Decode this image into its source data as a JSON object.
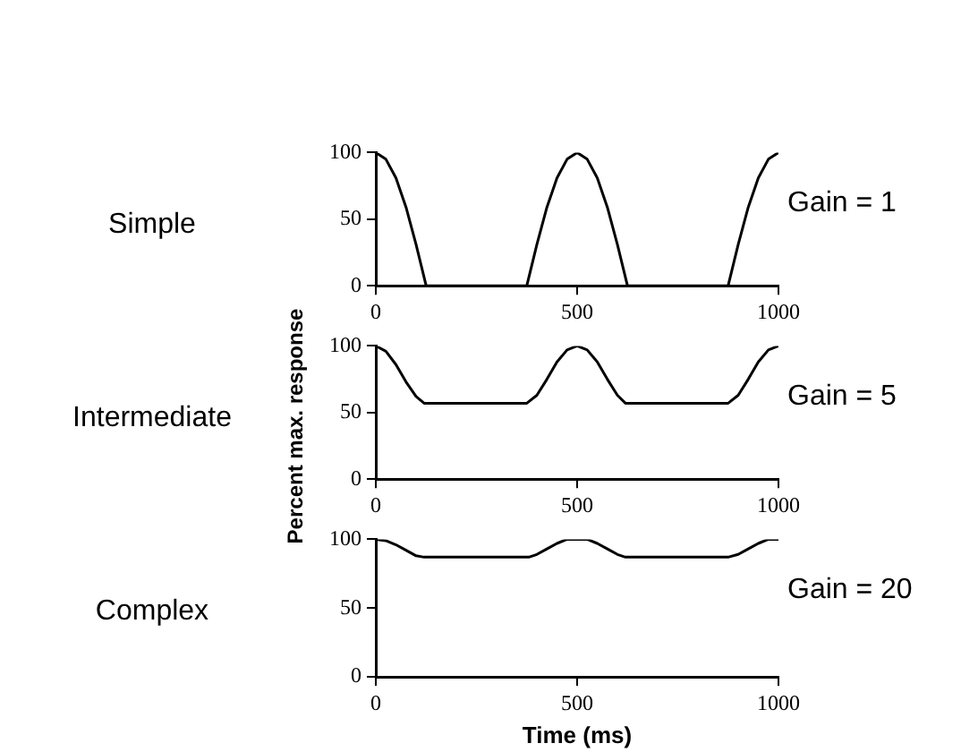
{
  "chart_data": [
    {
      "type": "line",
      "annotations": [
        "Simple",
        "Gain = 1"
      ],
      "x": [
        0,
        25,
        50,
        75,
        100,
        125,
        375,
        400,
        425,
        450,
        475,
        500,
        525,
        550,
        575,
        600,
        625,
        875,
        900,
        925,
        950,
        975,
        1000
      ],
      "series": [
        {
          "color": "#000000",
          "values": [
            100,
            95,
            81,
            59,
            31,
            0,
            0,
            31,
            59,
            81,
            95,
            100,
            95,
            81,
            59,
            31,
            0,
            0,
            31,
            59,
            81,
            95,
            100
          ]
        }
      ],
      "xlim": [
        0,
        1000
      ],
      "xticks": [
        0,
        500,
        1000
      ],
      "ylim": [
        0,
        100
      ],
      "yticks": [
        0,
        50,
        100
      ]
    },
    {
      "type": "line",
      "annotations": [
        "Intermediate",
        "Gain = 5"
      ],
      "ylabel": "Percent max. response",
      "x": [
        0,
        25,
        50,
        75,
        100,
        120,
        375,
        400,
        425,
        450,
        475,
        500,
        525,
        550,
        575,
        600,
        620,
        875,
        900,
        925,
        950,
        975,
        1000
      ],
      "series": [
        {
          "color": "#000000",
          "values": [
            100,
            96,
            86,
            73,
            62,
            57,
            57,
            63,
            75,
            88,
            97,
            100,
            97,
            88,
            75,
            63,
            57,
            57,
            63,
            75,
            88,
            97,
            100
          ]
        }
      ],
      "xlim": [
        0,
        1000
      ],
      "xticks": [
        0,
        500,
        1000
      ],
      "ylim": [
        0,
        100
      ],
      "yticks": [
        0,
        50,
        100
      ]
    },
    {
      "type": "line",
      "annotations": [
        "Complex",
        "Gain = 20"
      ],
      "xlabel": "Time (ms)",
      "x": [
        0,
        25,
        50,
        75,
        100,
        120,
        380,
        400,
        425,
        450,
        475,
        500,
        525,
        550,
        575,
        600,
        620,
        875,
        900,
        925,
        950,
        975,
        1000
      ],
      "series": [
        {
          "color": "#000000",
          "values": [
            100,
            99,
            96,
            92,
            88,
            87,
            87,
            89,
            93,
            97,
            100,
            100,
            100,
            97,
            93,
            89,
            87,
            87,
            89,
            93,
            97,
            100,
            100
          ]
        }
      ],
      "xlim": [
        0,
        1000
      ],
      "xticks": [
        0,
        500,
        1000
      ],
      "ylim": [
        0,
        100
      ],
      "yticks": [
        0,
        50,
        100
      ]
    }
  ]
}
